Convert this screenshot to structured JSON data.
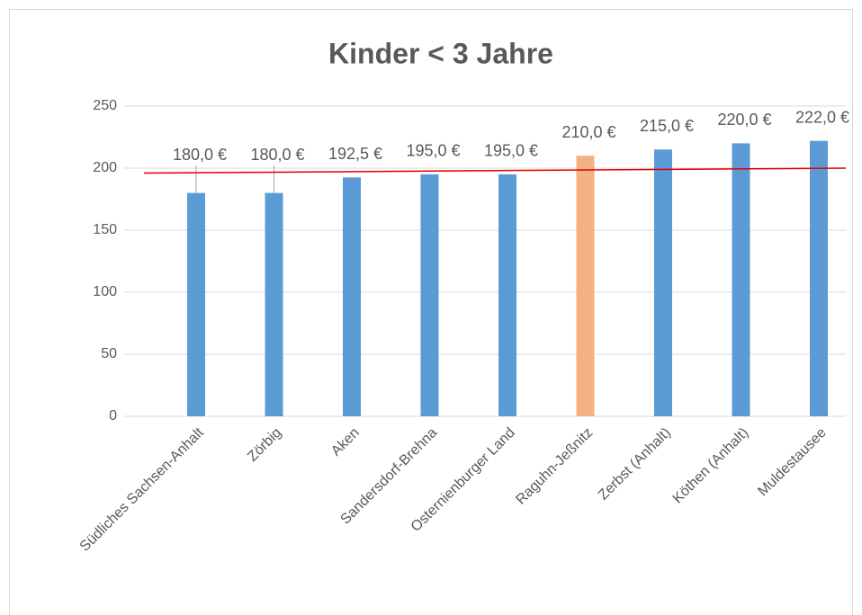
{
  "chart_data": {
    "type": "bar",
    "title": "Kinder < 3 Jahre",
    "categories": [
      "Südliches Sachsen-Anhalt",
      "Zörbig",
      "Aken",
      "Sandersdorf-Brehna",
      "Osternienburger Land",
      "Raguhn-Jeßnitz",
      "Zerbst (Anhalt)",
      "Köthen (Anhalt)",
      "Muldestausee"
    ],
    "values": [
      180,
      180,
      192.5,
      195,
      195,
      210,
      215,
      220,
      222
    ],
    "value_labels": [
      "180,0 €",
      "180,0 €",
      "192,5 €",
      "195,0 €",
      "195,0 €",
      "210,0 €",
      "215,0 €",
      "220,0 €",
      "222,0 €"
    ],
    "colors": [
      "#5b9bd5",
      "#5b9bd5",
      "#5b9bd5",
      "#5b9bd5",
      "#5b9bd5",
      "#f4b183",
      "#5b9bd5",
      "#5b9bd5",
      "#5b9bd5"
    ],
    "reference_line": {
      "values": [
        196,
        200
      ],
      "color": "#e00000"
    },
    "ylim": [
      0,
      250
    ],
    "yticks": [
      0,
      50,
      100,
      150,
      200,
      250
    ],
    "grid": true
  }
}
